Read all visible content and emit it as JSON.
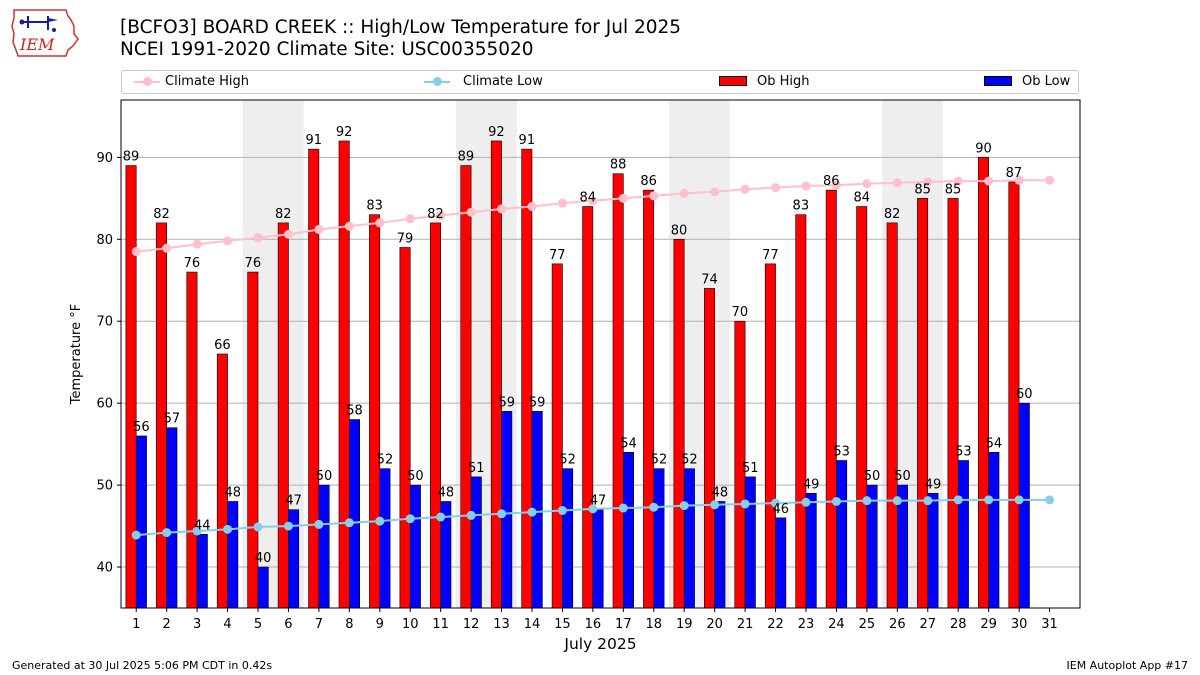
{
  "header": {
    "logo_text": "IEM",
    "title_line1": "[BCFO3] BOARD CREEK :: High/Low Temperature for Jul 2025",
    "title_line2": "NCEI 1991-2020 Climate Site: USC00355020"
  },
  "legend": {
    "items": [
      {
        "label": "Climate High",
        "kind": "line",
        "color": "#ffc0cb"
      },
      {
        "label": "Climate Low",
        "kind": "line",
        "color": "#87ceeb"
      },
      {
        "label": "Ob High",
        "kind": "bar",
        "color": "#ff0000"
      },
      {
        "label": "Ob Low",
        "kind": "bar",
        "color": "#0000ff"
      }
    ]
  },
  "footer": {
    "left": "Generated at 30 Jul 2025 5:06 PM CDT in 0.42s",
    "right": "IEM Autoplot App #17"
  },
  "chart_data": {
    "type": "bar",
    "xlabel": "July 2025",
    "ylabel": "Temperature °F",
    "ylim": [
      35,
      97
    ],
    "yticks": [
      40,
      50,
      60,
      70,
      80,
      90
    ],
    "grid": "horizontal",
    "legend_position": "top",
    "categories": [
      "1",
      "2",
      "3",
      "4",
      "5",
      "6",
      "7",
      "8",
      "9",
      "10",
      "11",
      "12",
      "13",
      "14",
      "15",
      "16",
      "17",
      "18",
      "19",
      "20",
      "21",
      "22",
      "23",
      "24",
      "25",
      "26",
      "27",
      "28",
      "29",
      "30",
      "31"
    ],
    "weekend_shading_days": [
      [
        5,
        6
      ],
      [
        12,
        13
      ],
      [
        19,
        20
      ],
      [
        26,
        27
      ]
    ],
    "shade_color": "#eeeeee",
    "series": [
      {
        "name": "Ob High",
        "type": "bar",
        "color": "#ff0000",
        "values": [
          89,
          82,
          76,
          66,
          76,
          82,
          91,
          92,
          83,
          79,
          82,
          89,
          92,
          91,
          77,
          84,
          88,
          86,
          80,
          74,
          70,
          77,
          83,
          86,
          84,
          82,
          85,
          85,
          90,
          87,
          null
        ]
      },
      {
        "name": "Ob Low",
        "type": "bar",
        "color": "#0000ff",
        "values": [
          56,
          57,
          44,
          48,
          40,
          47,
          50,
          58,
          52,
          50,
          48,
          51,
          59,
          59,
          52,
          47,
          54,
          52,
          52,
          48,
          51,
          46,
          49,
          53,
          50,
          50,
          49,
          53,
          54,
          60,
          null
        ]
      },
      {
        "name": "Climate High",
        "type": "line",
        "color": "#ffc0cb",
        "values": [
          78.5,
          78.9,
          79.4,
          79.8,
          80.2,
          80.6,
          81.2,
          81.6,
          82.0,
          82.5,
          82.9,
          83.3,
          83.7,
          84.0,
          84.4,
          84.7,
          85.0,
          85.3,
          85.6,
          85.8,
          86.1,
          86.3,
          86.5,
          86.6,
          86.8,
          86.9,
          87.0,
          87.1,
          87.1,
          87.2,
          87.2
        ]
      },
      {
        "name": "Climate Low",
        "type": "line",
        "color": "#87ceeb",
        "values": [
          43.9,
          44.2,
          44.4,
          44.6,
          44.9,
          45.0,
          45.2,
          45.4,
          45.6,
          45.9,
          46.1,
          46.3,
          46.5,
          46.7,
          46.9,
          47.1,
          47.2,
          47.3,
          47.5,
          47.6,
          47.7,
          47.8,
          47.9,
          48.0,
          48.1,
          48.1,
          48.1,
          48.2,
          48.2,
          48.2,
          48.2
        ]
      }
    ]
  }
}
